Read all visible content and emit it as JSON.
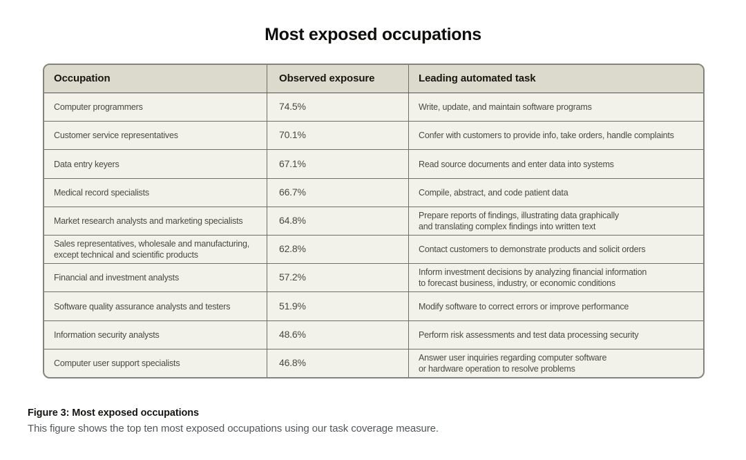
{
  "title": "Most exposed occupations",
  "table": {
    "columns": {
      "occupation": "Occupation",
      "exposure": "Observed exposure",
      "task": "Leading automated task"
    },
    "rows": [
      {
        "occupation": "Computer programmers",
        "exposure": "74.5%",
        "task": "Write, update, and maintain software programs"
      },
      {
        "occupation": "Customer service representatives",
        "exposure": "70.1%",
        "task": "Confer with customers to provide info, take orders, handle complaints"
      },
      {
        "occupation": "Data entry keyers",
        "exposure": "67.1%",
        "task": "Read source documents and enter data into systems"
      },
      {
        "occupation": "Medical record specialists",
        "exposure": "66.7%",
        "task": "Compile, abstract, and code patient data"
      },
      {
        "occupation": "Market research analysts and marketing specialists",
        "exposure": "64.8%",
        "task": "Prepare reports of findings, illustrating data graphically\nand translating complex findings into written text"
      },
      {
        "occupation": "Sales representatives, wholesale and manufacturing,\nexcept technical and scientific products",
        "exposure": "62.8%",
        "task": "Contact customers to demonstrate products and solicit orders"
      },
      {
        "occupation": "Financial and investment analysts",
        "exposure": "57.2%",
        "task": "Inform investment decisions by analyzing financial information\nto forecast business, industry, or economic conditions"
      },
      {
        "occupation": "Software quality assurance analysts and testers",
        "exposure": "51.9%",
        "task": "Modify software to correct errors or improve performance"
      },
      {
        "occupation": "Information security analysts",
        "exposure": "48.6%",
        "task": "Perform risk assessments and test data processing security"
      },
      {
        "occupation": "Computer user support specialists",
        "exposure": "46.8%",
        "task": "Answer user inquiries regarding computer software\nor hardware operation to resolve problems"
      }
    ]
  },
  "caption": {
    "title": "Figure 3: Most exposed occupations",
    "description": "This figure shows the top ten most exposed occupations using our task coverage measure."
  },
  "colors": {
    "page_background": "#ffffff",
    "header_background": "#dcdacd",
    "row_background": "#f2f1ea",
    "border": "#6e6e67",
    "cell_text": "#494943",
    "heading_text": "#0e0e0c",
    "caption_text": "#50575a"
  },
  "chart_data": {
    "type": "table",
    "title": "Most exposed occupations",
    "columns": [
      "Occupation",
      "Observed exposure",
      "Leading automated task"
    ],
    "values": [
      [
        "Computer programmers",
        74.5,
        "Write, update, and maintain software programs"
      ],
      [
        "Customer service representatives",
        70.1,
        "Confer with customers to provide info, take orders, handle complaints"
      ],
      [
        "Data entry keyers",
        67.1,
        "Read source documents and enter data into systems"
      ],
      [
        "Medical record specialists",
        66.7,
        "Compile, abstract, and code patient data"
      ],
      [
        "Market research analysts and marketing specialists",
        64.8,
        "Prepare reports of findings, illustrating data graphically and translating complex findings into written text"
      ],
      [
        "Sales representatives, wholesale and manufacturing, except technical and scientific products",
        62.8,
        "Contact customers to demonstrate products and solicit orders"
      ],
      [
        "Financial and investment analysts",
        57.2,
        "Inform investment decisions by analyzing financial information to forecast business, industry, or economic conditions"
      ],
      [
        "Software quality assurance analysts and testers",
        51.9,
        "Modify software to correct errors or improve performance"
      ],
      [
        "Information security analysts",
        48.6,
        "Perform risk assessments and test data processing security"
      ],
      [
        "Computer user support specialists",
        46.8,
        "Answer user inquiries regarding computer software or hardware operation to resolve problems"
      ]
    ]
  }
}
